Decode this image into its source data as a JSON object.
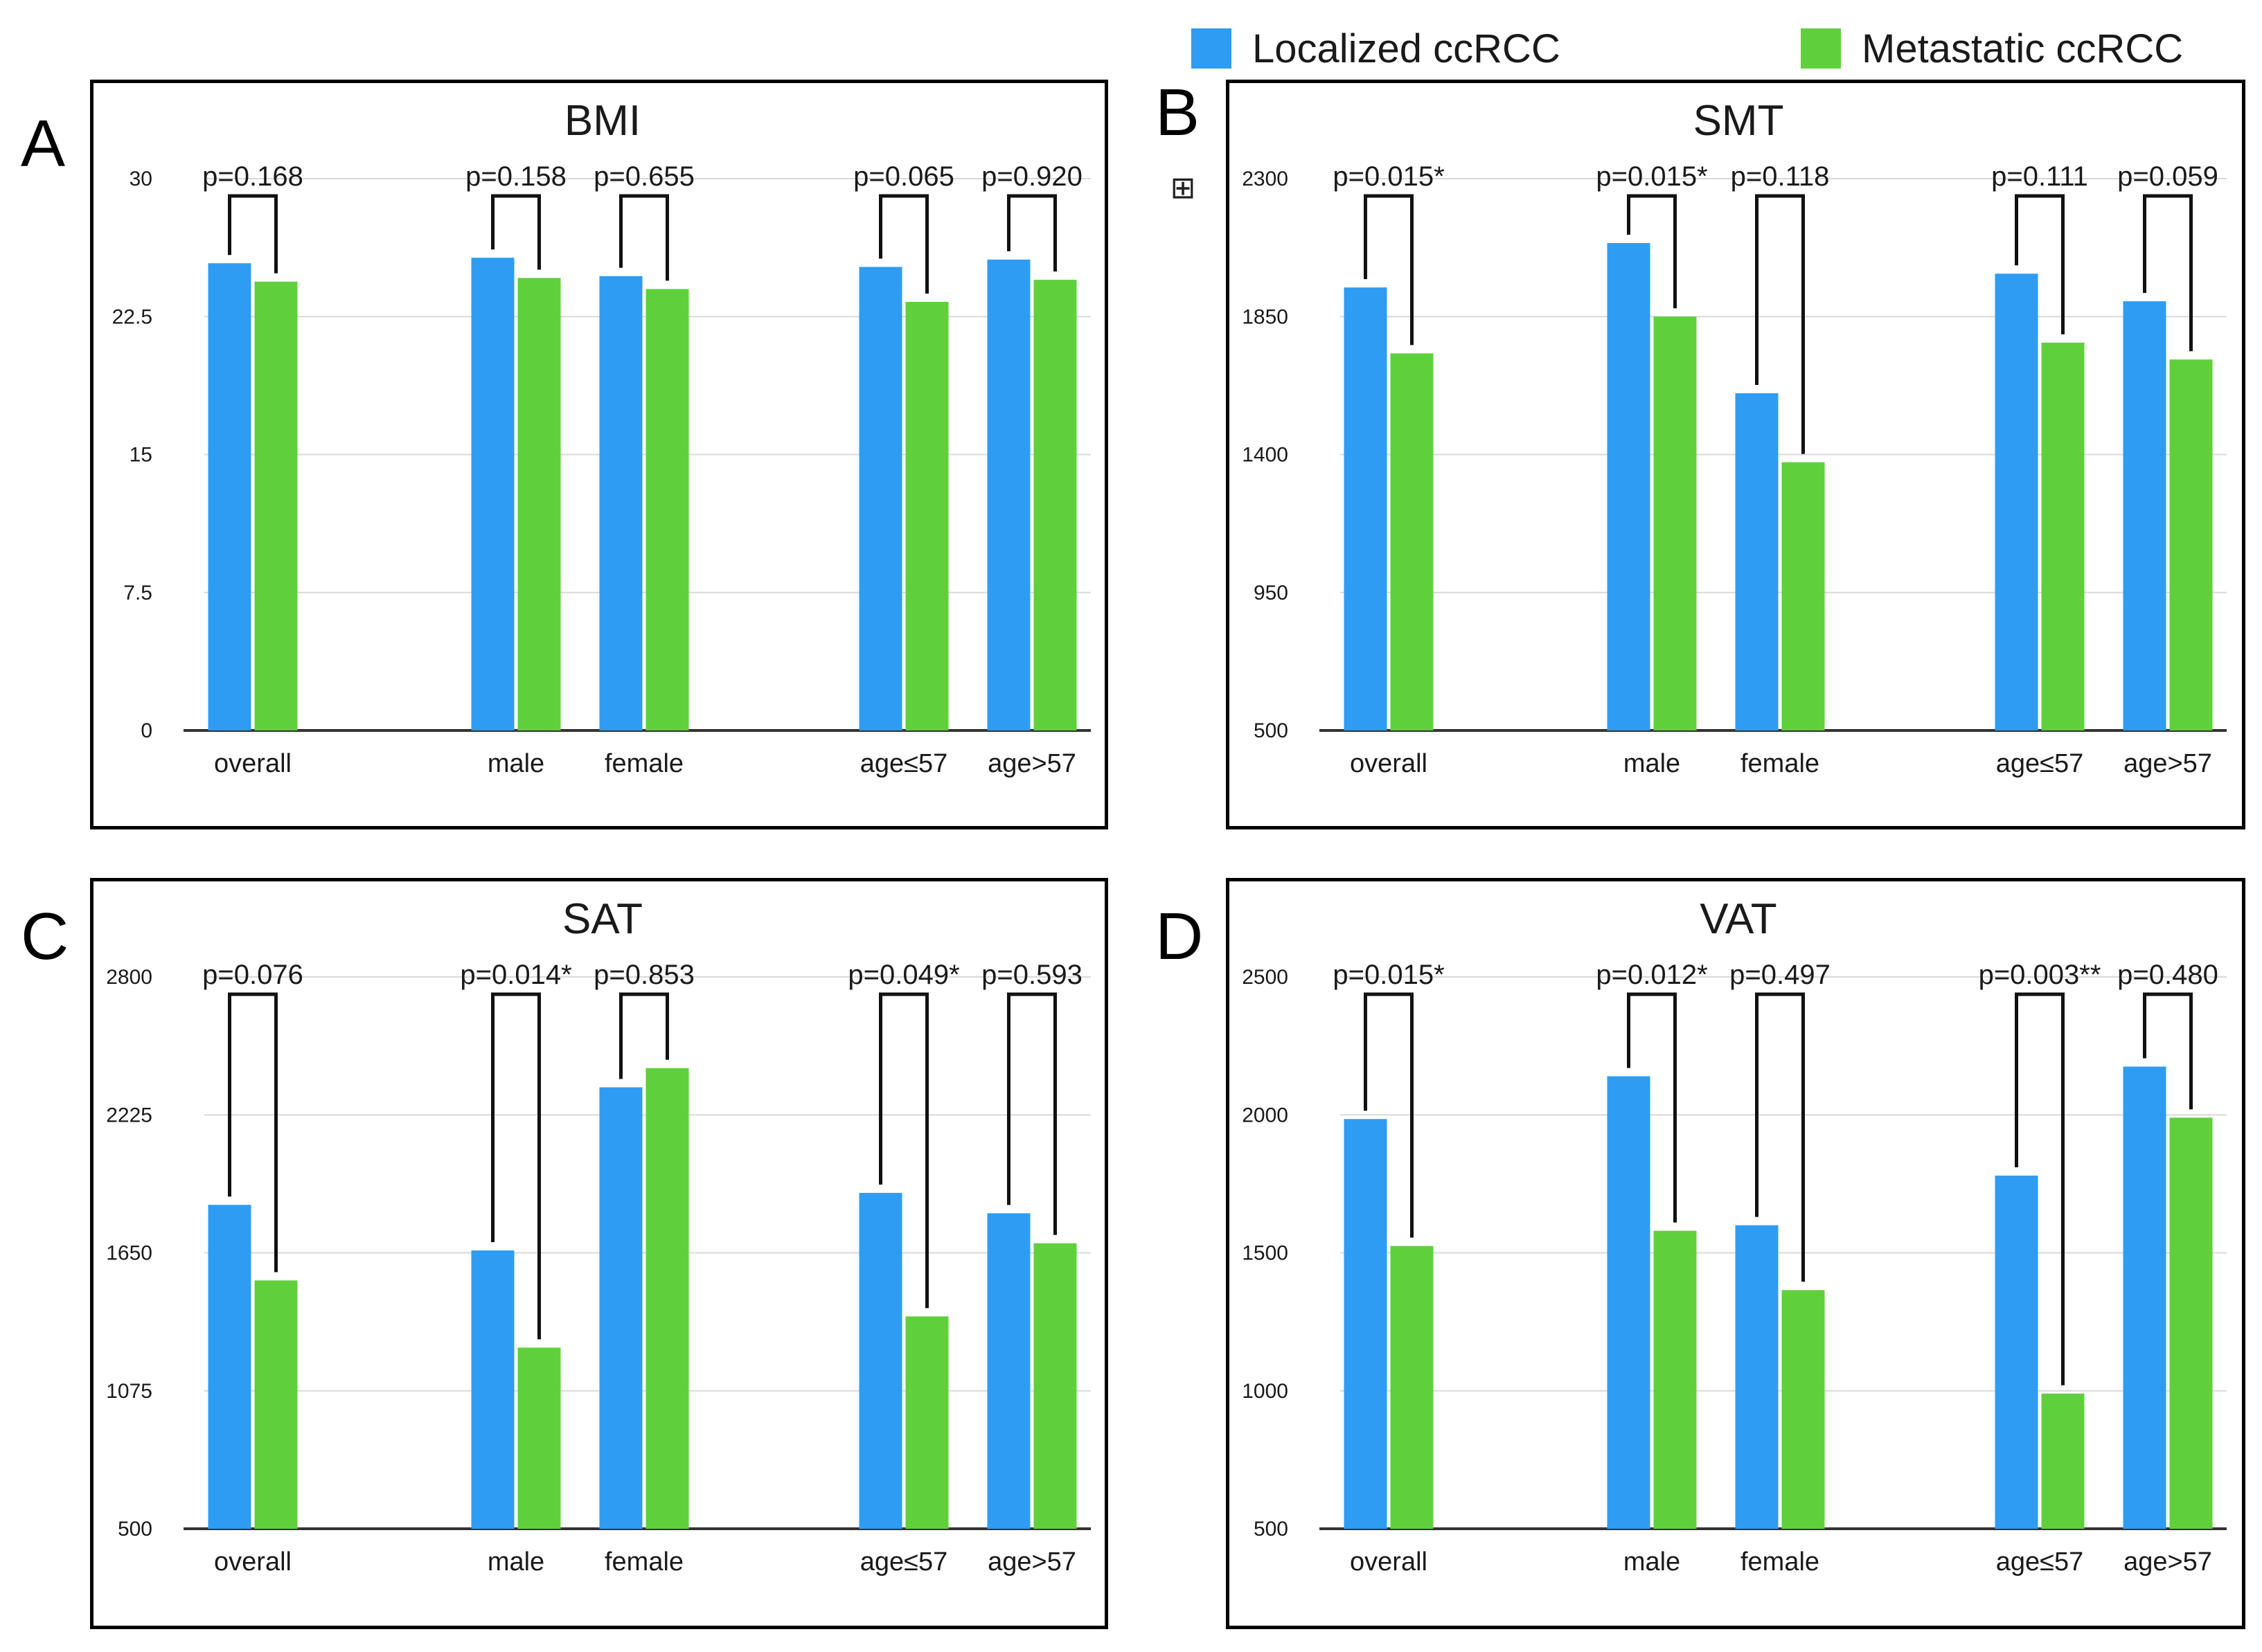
{
  "legend": {
    "items": [
      {
        "label": "Localized ccRCC",
        "color": "#2e9cf2"
      },
      {
        "label": "Metastatic ccRCC",
        "color": "#5fd03c"
      }
    ]
  },
  "colors": {
    "grid": "#d9d9d9",
    "axis": "#333333",
    "bracket": "#111111",
    "text": "#1a1a1a"
  },
  "chart_data": [
    {
      "letter": "A",
      "type": "bar",
      "title": "BMI",
      "categories": [
        "overall",
        "male",
        "female",
        "age≤57",
        "age>57"
      ],
      "series": [
        {
          "name": "Localized ccRCC",
          "values": [
            25.4,
            25.7,
            24.7,
            25.2,
            25.6
          ]
        },
        {
          "name": "Metastatic ccRCC",
          "values": [
            24.4,
            24.6,
            24.0,
            23.3,
            24.5
          ]
        }
      ],
      "ylim": [
        0,
        30
      ],
      "yticks": [
        "0",
        "7.5",
        "15",
        "22.5",
        "30"
      ],
      "pvalues": [
        "p=0.168",
        "p=0.158",
        "p=0.655",
        "p=0.065",
        "p=0.920"
      ],
      "grid": true
    },
    {
      "letter": "B",
      "type": "bar",
      "title": "SMT",
      "categories": [
        "overall",
        "male",
        "female",
        "age≤57",
        "age>57"
      ],
      "series": [
        {
          "name": "Localized ccRCC",
          "values": [
            1945,
            2090,
            1600,
            1990,
            1900
          ]
        },
        {
          "name": "Metastatic ccRCC",
          "values": [
            1730,
            1850,
            1375,
            1765,
            1710
          ]
        }
      ],
      "ylim": [
        500,
        2300
      ],
      "yticks": [
        "500",
        "950",
        "1400",
        "1850",
        "2300"
      ],
      "pvalues": [
        "p=0.015*",
        "p=0.015*",
        "p=0.118",
        "p=0.111",
        "p=0.059"
      ],
      "grid": true
    },
    {
      "letter": "C",
      "type": "bar",
      "title": "SAT",
      "categories": [
        "overall",
        "male",
        "female",
        "age≤57",
        "age>57"
      ],
      "series": [
        {
          "name": "Localized ccRCC",
          "values": [
            1850,
            1660,
            2340,
            1900,
            1815
          ]
        },
        {
          "name": "Metastatic ccRCC",
          "values": [
            1535,
            1255,
            2420,
            1385,
            1690
          ]
        }
      ],
      "ylim": [
        500,
        2800
      ],
      "yticks": [
        "500",
        "1075",
        "1650",
        "2225",
        "2800"
      ],
      "pvalues": [
        "p=0.076",
        "p=0.014*",
        "p=0.853",
        "p=0.049*",
        "p=0.593"
      ],
      "grid": true
    },
    {
      "letter": "D",
      "type": "bar",
      "title": "VAT",
      "categories": [
        "overall",
        "male",
        "female",
        "age≤57",
        "age>57"
      ],
      "series": [
        {
          "name": "Localized ccRCC",
          "values": [
            1985,
            2140,
            1600,
            1780,
            2175
          ]
        },
        {
          "name": "Metastatic ccRCC",
          "values": [
            1525,
            1580,
            1365,
            990,
            1990
          ]
        }
      ],
      "ylim": [
        500,
        2500
      ],
      "yticks": [
        "500",
        "1000",
        "1500",
        "2000",
        "2500"
      ],
      "pvalues": [
        "p=0.015*",
        "p=0.012*",
        "p=0.497",
        "p=0.003**",
        "p=0.480"
      ],
      "grid": true
    }
  ]
}
